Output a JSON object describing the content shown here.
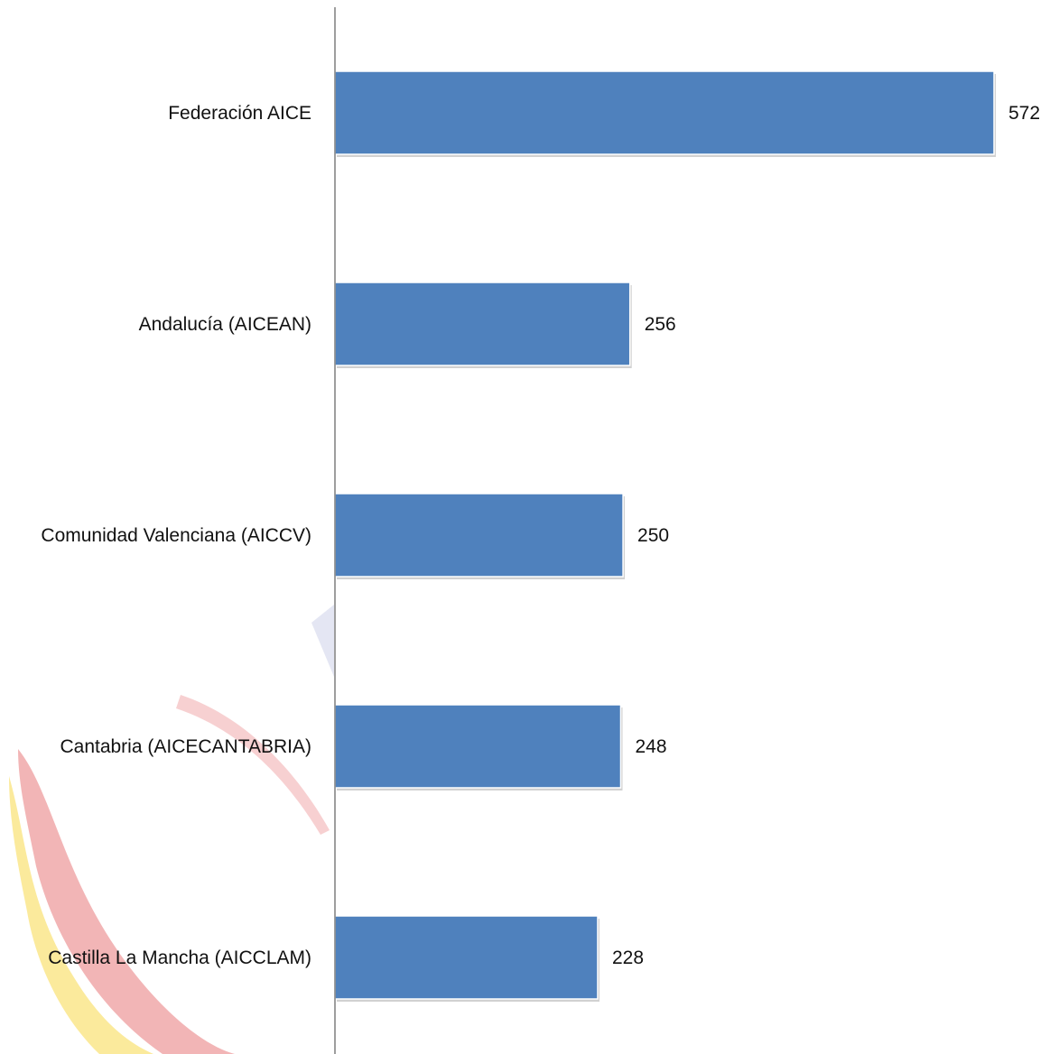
{
  "colors": {
    "bar": "#4f81bd",
    "bar_edge": "#ffffff",
    "axis": "#7f7f7f",
    "text": "#111111",
    "watermark_red": "#e8787a",
    "watermark_yellow": "#f7d84a",
    "watermark_blue": "#c9cde8"
  },
  "chart_data": {
    "type": "bar",
    "orientation": "horizontal",
    "categories": [
      "Federación AICE",
      "Andalucía (AICEAN)",
      "Comunidad Valenciana (AICCV)",
      "Cantabria (AICECANTABRIA)",
      "Castilla La Mancha (AICCLAM)"
    ],
    "values": [
      572,
      256,
      250,
      248,
      228
    ],
    "data_labels": [
      "572",
      "256",
      "250",
      "248",
      "228"
    ],
    "title": "",
    "xlabel": "",
    "ylabel": "",
    "xlim": [
      0,
      572
    ],
    "grid": false,
    "legend": "none"
  }
}
